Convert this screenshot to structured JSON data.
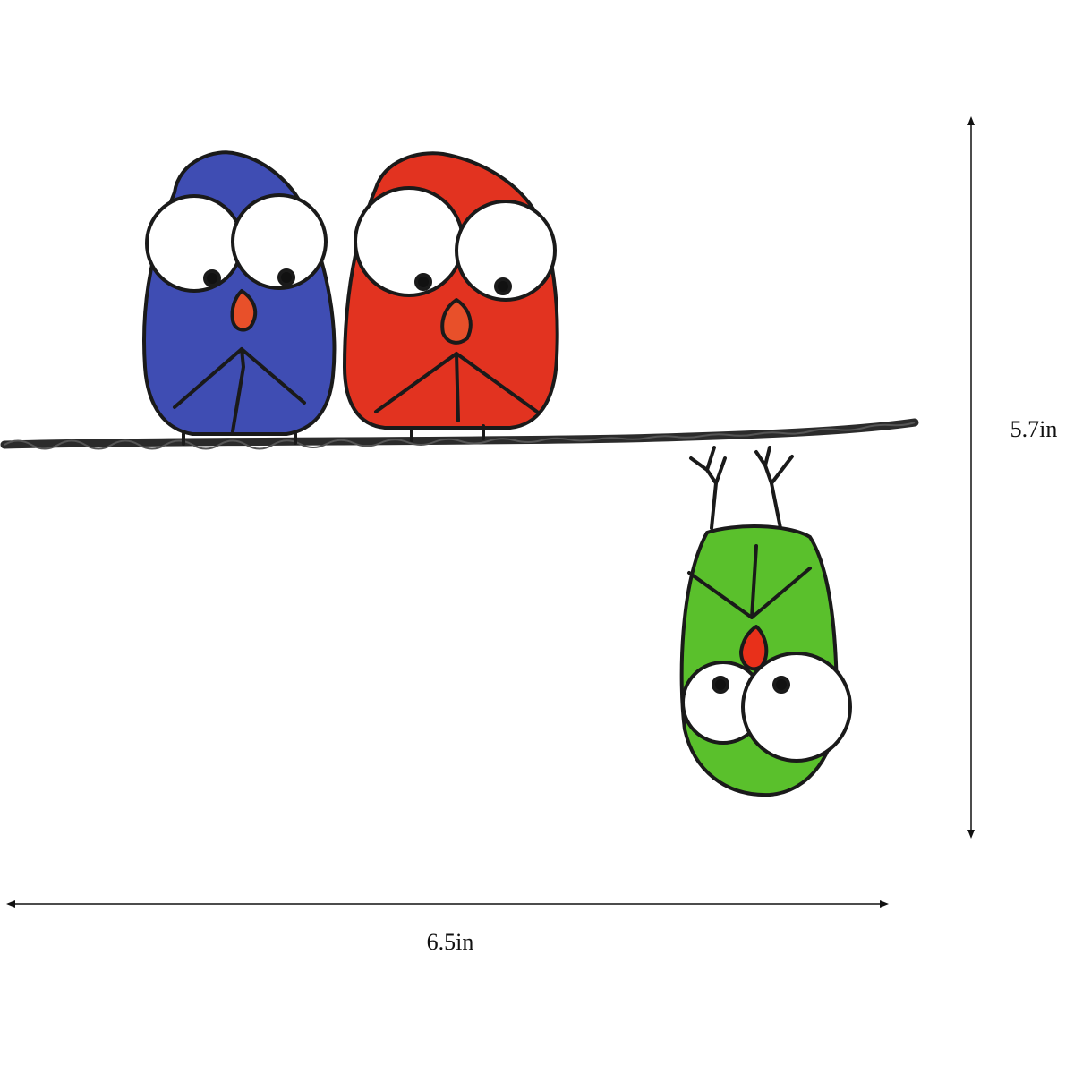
{
  "dimensions": {
    "height": "5.7in",
    "width": "6.5in"
  }
}
